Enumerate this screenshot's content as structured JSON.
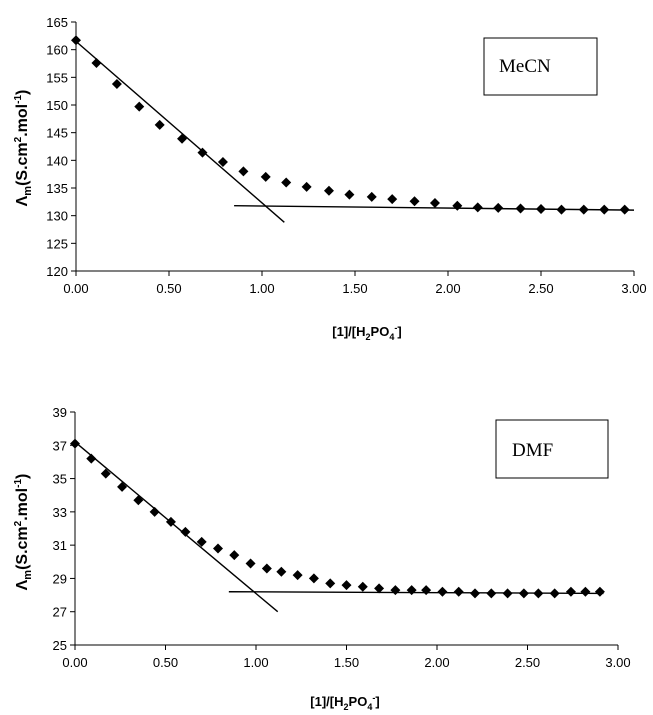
{
  "chart_data": [
    {
      "type": "scatter",
      "title": "",
      "xlabel": "[1]/[H2PO4-]",
      "xlabel_parts": {
        "a": "[1]/[H",
        "sub1": "2",
        "b": "PO",
        "sub2": "4",
        "sup": "-",
        "c": "]"
      },
      "ylabel": "Λm(S.cm2.mol-1)",
      "ylabel_parts": {
        "sym": "Λ",
        "sub": "m",
        "a": "(S.cm",
        "sup1": "2",
        "b": ".mol",
        "sup2": "-1",
        "c": ")"
      },
      "xlim": [
        0,
        3
      ],
      "ylim": [
        120,
        165
      ],
      "xticks": [
        "0.00",
        "0.50",
        "1.00",
        "1.50",
        "2.00",
        "2.50",
        "3.00"
      ],
      "xtick_values": [
        0,
        0.5,
        1,
        1.5,
        2,
        2.5,
        3
      ],
      "yticks": [
        "120",
        "125",
        "130",
        "135",
        "140",
        "145",
        "150",
        "155",
        "160",
        "165"
      ],
      "ytick_values": [
        120,
        125,
        130,
        135,
        140,
        145,
        150,
        155,
        160,
        165
      ],
      "box_label": "MeCN",
      "marker": "diamond",
      "grid": false,
      "series": [
        {
          "x": [
            0.0,
            0.11,
            0.22,
            0.34,
            0.45,
            0.57,
            0.68,
            0.79,
            0.9,
            1.02,
            1.13,
            1.24,
            1.36,
            1.47,
            1.59,
            1.7,
            1.82,
            1.93,
            2.05,
            2.16,
            2.27,
            2.39,
            2.5,
            2.61,
            2.73,
            2.84,
            2.95
          ],
          "y": [
            161.7,
            157.6,
            153.8,
            149.7,
            146.4,
            143.9,
            141.4,
            139.7,
            138.0,
            137.0,
            136.0,
            135.2,
            134.5,
            133.8,
            133.4,
            133.0,
            132.6,
            132.3,
            131.8,
            131.5,
            131.4,
            131.3,
            131.2,
            131.1,
            131.1,
            131.1,
            131.1
          ]
        }
      ],
      "fit_lines": [
        {
          "x": [
            0.0,
            1.12
          ],
          "y": [
            161.5,
            128.8
          ]
        },
        {
          "x": [
            0.85,
            3.0
          ],
          "y": [
            131.8,
            131.0
          ]
        }
      ]
    },
    {
      "type": "scatter",
      "title": "",
      "xlabel": "[1]/[H2PO4-]",
      "xlabel_parts": {
        "a": "[1]/[H",
        "sub1": "2",
        "b": "PO",
        "sub2": "4",
        "sup": "-",
        "c": "]"
      },
      "ylabel": "Λm(S.cm2.mol-1)",
      "ylabel_parts": {
        "sym": "Λ",
        "sub": "m",
        "a": "(S.cm",
        "sup1": "2",
        "b": ".mol",
        "sup2": "-1",
        "c": ")"
      },
      "xlim": [
        0,
        3
      ],
      "ylim": [
        25,
        39
      ],
      "xticks": [
        "0.00",
        "0.50",
        "1.00",
        "1.50",
        "2.00",
        "2.50",
        "3.00"
      ],
      "xtick_values": [
        0,
        0.5,
        1,
        1.5,
        2,
        2.5,
        3
      ],
      "yticks": [
        "25",
        "27",
        "29",
        "31",
        "33",
        "35",
        "37",
        "39"
      ],
      "ytick_values": [
        25,
        27,
        29,
        31,
        33,
        35,
        37,
        39
      ],
      "box_label": "DMF",
      "marker": "diamond",
      "grid": false,
      "series": [
        {
          "x": [
            0.0,
            0.09,
            0.17,
            0.26,
            0.35,
            0.44,
            0.53,
            0.61,
            0.7,
            0.79,
            0.88,
            0.97,
            1.06,
            1.14,
            1.23,
            1.32,
            1.41,
            1.5,
            1.59,
            1.68,
            1.77,
            1.86,
            1.94,
            2.03,
            2.12,
            2.21,
            2.3,
            2.39,
            2.48,
            2.56,
            2.65,
            2.74,
            2.82,
            2.9
          ],
          "y": [
            37.1,
            36.2,
            35.3,
            34.5,
            33.7,
            33.0,
            32.4,
            31.8,
            31.2,
            30.8,
            30.4,
            29.9,
            29.6,
            29.4,
            29.2,
            29.0,
            28.7,
            28.6,
            28.5,
            28.4,
            28.3,
            28.3,
            28.3,
            28.2,
            28.2,
            28.1,
            28.1,
            28.1,
            28.1,
            28.1,
            28.1,
            28.2,
            28.2,
            28.2
          ]
        }
      ],
      "fit_lines": [
        {
          "x": [
            0.0,
            1.12
          ],
          "y": [
            37.2,
            27.0
          ]
        },
        {
          "x": [
            0.85,
            2.92
          ],
          "y": [
            28.2,
            28.1
          ]
        }
      ]
    }
  ]
}
